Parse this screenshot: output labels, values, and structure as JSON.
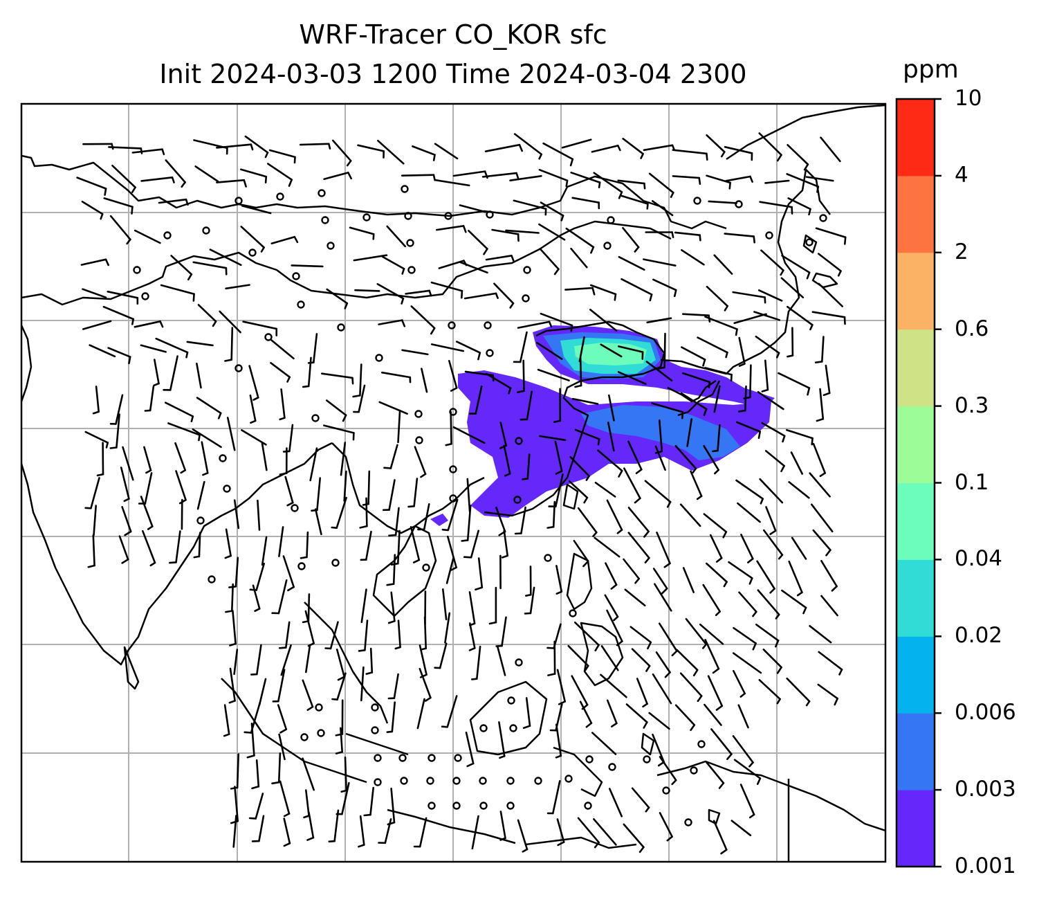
{
  "title": {
    "line1": "WRF-Tracer CO_KOR sfc",
    "line2": "Init 2024-03-03 1200 Time 2024-03-04 2300"
  },
  "colorbar": {
    "unit": "ppm",
    "levels": [
      "0.001",
      "0.003",
      "0.006",
      "0.02",
      "0.04",
      "0.1",
      "0.3",
      "0.6",
      "2",
      "4",
      "10"
    ],
    "colors": [
      "#6428fa",
      "#3476f4",
      "#04b2ec",
      "#30dcd6",
      "#6cfcbc",
      "#9cfc98",
      "#d0e286",
      "#fcb264",
      "#fe7440",
      "#fe2a16"
    ]
  },
  "map": {
    "field": "CO_KOR surface tracer concentration",
    "features": [
      "coastlines",
      "country-borders",
      "gridlines",
      "wind-barbs"
    ],
    "coastline_color": "#000000",
    "gridline_color": "#b0b0b0"
  }
}
